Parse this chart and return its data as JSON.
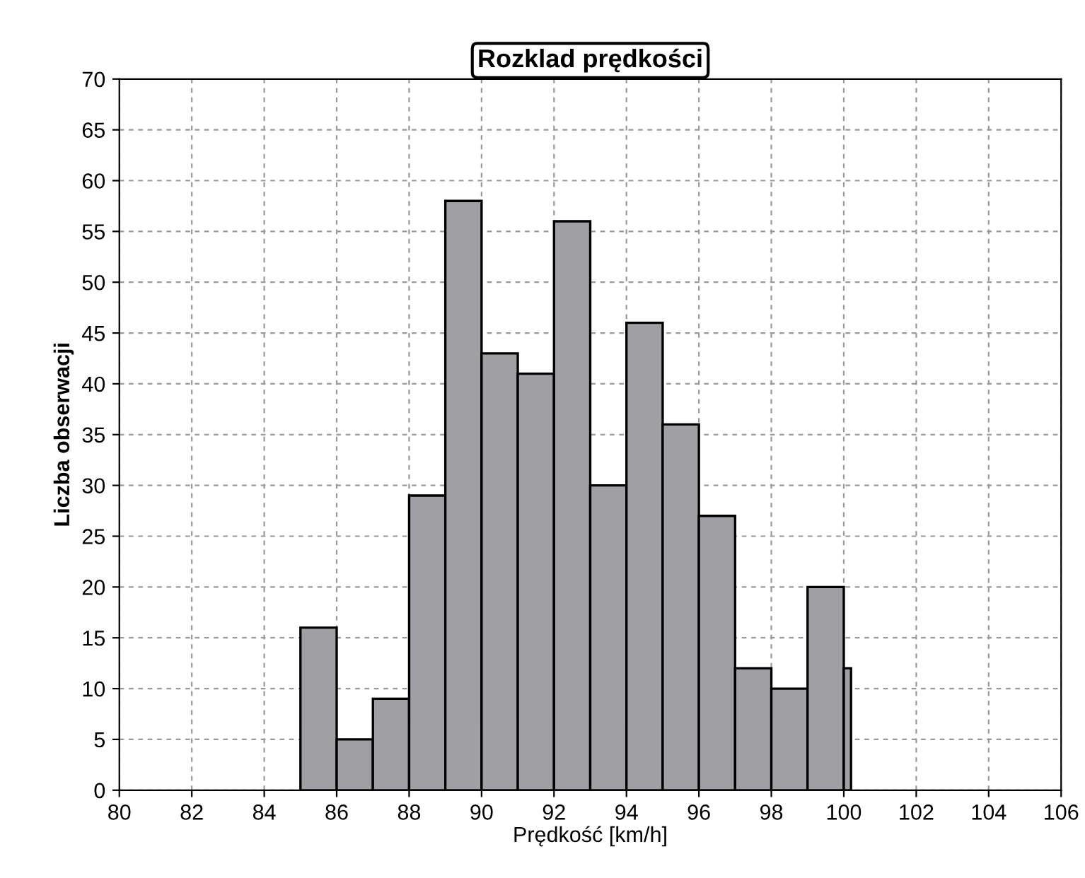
{
  "chart_data": {
    "type": "histogram",
    "title": "Rozklad prędkości",
    "xlabel": "Prędkość [km/h]",
    "ylabel": "Liczba obserwacji",
    "bins": [
      85,
      86,
      87,
      88,
      89,
      90,
      91,
      92,
      93,
      94,
      95,
      96,
      97,
      98,
      99,
      100,
      100.2
    ],
    "values": [
      16,
      5,
      9,
      29,
      58,
      43,
      41,
      56,
      30,
      46,
      36,
      27,
      12,
      10,
      20,
      12
    ],
    "color": "#a0a0a4",
    "xlim": [
      80,
      106
    ],
    "xticks": [
      80,
      82,
      84,
      86,
      88,
      90,
      92,
      94,
      96,
      98,
      100,
      102,
      104,
      106
    ],
    "ylim": [
      0,
      70
    ],
    "yticks": [
      0,
      5,
      10,
      15,
      20,
      25,
      30,
      35,
      40,
      45,
      50,
      55,
      60,
      65,
      70
    ],
    "grid": true
  }
}
